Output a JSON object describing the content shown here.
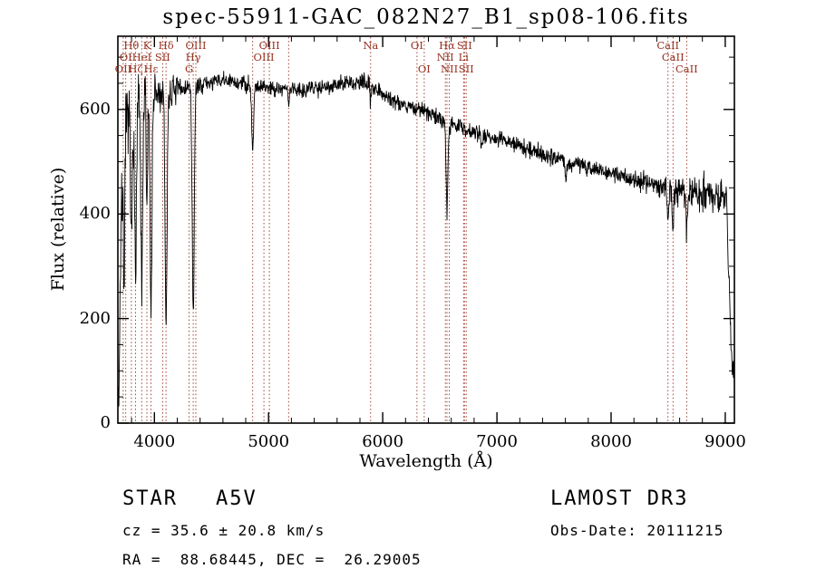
{
  "page": {
    "title": "spec-55911-GAC_082N27_B1_sp08-106.fits"
  },
  "footer": {
    "object_class": "STAR",
    "subclass": "A5V",
    "survey": "LAMOST DR3",
    "cz_line": "cz = 35.6 ± 20.8 km/s",
    "obs_date_line": "Obs-Date: 20111215",
    "radec_line": "RA =  88.68445, DEC =  26.29005"
  },
  "chart_data": {
    "type": "line",
    "title": "spec-55911-GAC_082N27_B1_sp08-106.fits",
    "xlabel": "Wavelength (Å)",
    "ylabel": "Flux (relative)",
    "xlim": [
      3680,
      9080
    ],
    "ylim": [
      0,
      740
    ],
    "xticks": [
      4000,
      5000,
      6000,
      7000,
      8000,
      9000
    ],
    "yticks": [
      0,
      200,
      400,
      600
    ],
    "x_minor_step": 200,
    "y_minor_step": 50,
    "grid": false,
    "legend": "none",
    "spectrum_color": "#000000",
    "marker_color": "#96301f",
    "continuum": [
      [
        3690,
        60
      ],
      [
        3700,
        280
      ],
      [
        3715,
        420
      ],
      [
        3730,
        520
      ],
      [
        3760,
        575
      ],
      [
        3800,
        600
      ],
      [
        3850,
        615
      ],
      [
        3950,
        620
      ],
      [
        4100,
        630
      ],
      [
        4250,
        640
      ],
      [
        4450,
        650
      ],
      [
        4600,
        655
      ],
      [
        4750,
        650
      ],
      [
        4900,
        645
      ],
      [
        5100,
        640
      ],
      [
        5300,
        638
      ],
      [
        5500,
        645
      ],
      [
        5700,
        650
      ],
      [
        5880,
        650
      ],
      [
        5950,
        640
      ],
      [
        6050,
        622
      ],
      [
        6200,
        608
      ],
      [
        6350,
        598
      ],
      [
        6500,
        582
      ],
      [
        6650,
        568
      ],
      [
        6800,
        556
      ],
      [
        7000,
        545
      ],
      [
        7200,
        530
      ],
      [
        7400,
        515
      ],
      [
        7600,
        502
      ],
      [
        7800,
        490
      ],
      [
        8000,
        478
      ],
      [
        8200,
        466
      ],
      [
        8400,
        456
      ],
      [
        8600,
        446
      ],
      [
        8800,
        438
      ],
      [
        8950,
        432
      ],
      [
        9010,
        430
      ],
      [
        9030,
        300
      ],
      [
        9060,
        90
      ]
    ],
    "absorption_lines": [
      {
        "wl": 3735,
        "depth": 250,
        "width": 6
      },
      {
        "wl": 3798,
        "depth": 280,
        "width": 7
      },
      {
        "wl": 3835,
        "depth": 340,
        "width": 8
      },
      {
        "wl": 3889,
        "depth": 380,
        "width": 8
      },
      {
        "wl": 3934,
        "depth": 220,
        "width": 5
      },
      {
        "wl": 3970,
        "depth": 400,
        "width": 8
      },
      {
        "wl": 4102,
        "depth": 430,
        "width": 9
      },
      {
        "wl": 4340,
        "depth": 440,
        "width": 9
      },
      {
        "wl": 4861,
        "depth": 125,
        "width": 8
      },
      {
        "wl": 5175,
        "depth": 25,
        "width": 6
      },
      {
        "wl": 5894,
        "depth": 30,
        "width": 5
      },
      {
        "wl": 6563,
        "depth": 165,
        "width": 8
      },
      {
        "wl": 6870,
        "depth": 18,
        "width": 8
      },
      {
        "wl": 7605,
        "depth": 25,
        "width": 10
      },
      {
        "wl": 8498,
        "depth": 60,
        "width": 6
      },
      {
        "wl": 8542,
        "depth": 85,
        "width": 7
      },
      {
        "wl": 8662,
        "depth": 75,
        "width": 7
      }
    ],
    "noise": {
      "base": 8,
      "blue_sigma": 32,
      "blue_limit": 4300,
      "red_sigma": 14,
      "red_limit": 8250,
      "seed": 7
    },
    "spectral_line_markers": [
      {
        "label": "Hθ",
        "wl": 3798,
        "row": 0
      },
      {
        "label": "K",
        "wl": 3934,
        "row": 0
      },
      {
        "label": "Hδ",
        "wl": 4102,
        "row": 0
      },
      {
        "label": "OIII",
        "wl": 4363,
        "row": 0
      },
      {
        "label": "OIII",
        "wl": 5007,
        "row": 0
      },
      {
        "label": "Na",
        "wl": 5894,
        "row": 0
      },
      {
        "label": "OI",
        "wl": 6300,
        "row": 0
      },
      {
        "label": "Hα",
        "wl": 6563,
        "row": 0
      },
      {
        "label": "SII",
        "wl": 6716,
        "row": 0
      },
      {
        "label": "CaII",
        "wl": 8498,
        "row": 0
      },
      {
        "label": "OI",
        "wl": 3749,
        "row": 1
      },
      {
        "label": "HeI",
        "wl": 3889,
        "row": 1
      },
      {
        "label": "SII",
        "wl": 4072,
        "row": 1
      },
      {
        "label": "Hγ",
        "wl": 4340,
        "row": 1
      },
      {
        "label": "OIII",
        "wl": 4959,
        "row": 1
      },
      {
        "label": "NII",
        "wl": 6548,
        "row": 1
      },
      {
        "label": "Li",
        "wl": 6708,
        "row": 1
      },
      {
        "label": "CaII",
        "wl": 8542,
        "row": 1
      },
      {
        "label": "OII",
        "wl": 3727,
        "row": 2
      },
      {
        "label": "Hζ",
        "wl": 3835,
        "row": 2
      },
      {
        "label": "Hε",
        "wl": 3970,
        "row": 2
      },
      {
        "label": "G",
        "wl": 4304,
        "row": 2
      },
      {
        "label": "OI",
        "wl": 6363,
        "row": 2
      },
      {
        "label": "NII",
        "wl": 6583,
        "row": 2
      },
      {
        "label": "SII",
        "wl": 6731,
        "row": 2
      },
      {
        "label": "CaII",
        "wl": 8662,
        "row": 2
      },
      {
        "label": "",
        "wl": 4861,
        "row": -1
      },
      {
        "label": "",
        "wl": 5175,
        "row": -1
      }
    ]
  }
}
